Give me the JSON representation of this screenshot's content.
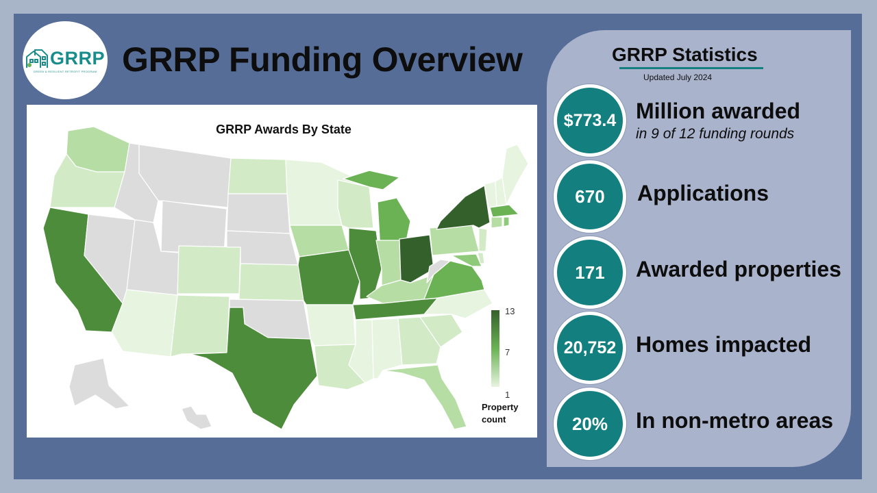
{
  "title": "GRRP Funding Overview",
  "logo": {
    "text": "GRRP",
    "subtitle": "GREEN & RESILIENT RETROFIT PROGRAM"
  },
  "map": {
    "title": "GRRP Awards By State",
    "legend": {
      "max": "13",
      "mid": "7",
      "min": "1",
      "label_line1": "Property",
      "label_line2": "count"
    },
    "colors": {
      "none": "#dcdcdc",
      "lvl1": "#e7f4e0",
      "lvl2": "#d2ebc6",
      "lvl3": "#b5dda4",
      "lvl4": "#8fc97a",
      "lvl5": "#6bb255",
      "lvl6": "#4d8c3a",
      "lvl7": "#34602b"
    }
  },
  "stats": {
    "title": "GRRP Statistics",
    "updated": "Updated July 2024",
    "items": [
      {
        "value": "$773.4",
        "label": "Million awarded",
        "sub": "in 9 of 12 funding rounds"
      },
      {
        "value": "670",
        "label": "Applications"
      },
      {
        "value": "171",
        "label": "Awarded properties"
      },
      {
        "value": "20,752",
        "label": "Homes impacted"
      },
      {
        "value": "20%",
        "label": "In non-metro areas"
      }
    ]
  },
  "colors": {
    "background": "#566d98",
    "accent": "#137f7f",
    "panel": "#a9b3cb"
  }
}
